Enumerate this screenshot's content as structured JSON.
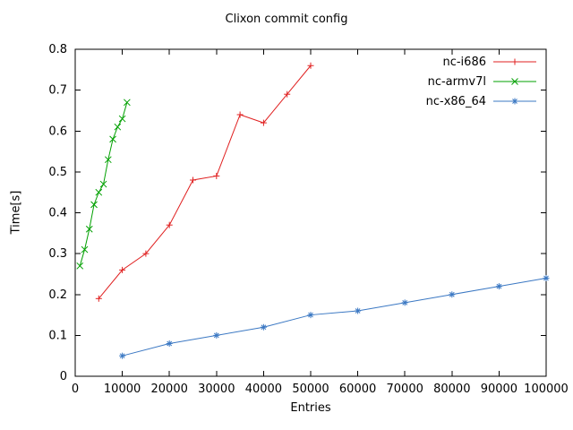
{
  "chart_data": {
    "type": "line",
    "title": "Clixon commit config",
    "xlabel": "Entries",
    "ylabel": "Time[s]",
    "xlim": [
      0,
      100000
    ],
    "ylim": [
      0,
      0.8
    ],
    "grid": false,
    "legend_position": "top-right-inside",
    "xtick_values": [
      0,
      10000,
      20000,
      30000,
      40000,
      50000,
      60000,
      70000,
      80000,
      90000,
      100000
    ],
    "xtick_labels": [
      "0",
      "10000",
      "20000",
      "30000",
      "40000",
      "50000",
      "60000",
      "70000",
      "80000",
      "90000",
      "100000"
    ],
    "ytick_values": [
      0,
      0.1,
      0.2,
      0.3,
      0.4,
      0.5,
      0.6,
      0.7,
      0.8
    ],
    "ytick_labels": [
      "0",
      "0.1",
      "0.2",
      "0.3",
      "0.4",
      "0.5",
      "0.6",
      "0.7",
      "0.8"
    ],
    "series": [
      {
        "name": "nc-i686",
        "color": "#e02020",
        "marker": "plus",
        "x": [
          5000,
          10000,
          15000,
          20000,
          25000,
          30000,
          35000,
          40000,
          45000,
          50000
        ],
        "y": [
          0.19,
          0.26,
          0.3,
          0.37,
          0.48,
          0.49,
          0.64,
          0.62,
          0.69,
          0.76
        ]
      },
      {
        "name": "nc-armv7l",
        "color": "#00a000",
        "marker": "cross",
        "x": [
          1000,
          2000,
          3000,
          4000,
          5000,
          6000,
          7000,
          8000,
          9000,
          10000,
          11000
        ],
        "y": [
          0.27,
          0.31,
          0.36,
          0.42,
          0.45,
          0.47,
          0.53,
          0.58,
          0.61,
          0.63,
          0.67
        ]
      },
      {
        "name": "nc-x86_64",
        "color": "#3b78c3",
        "marker": "star",
        "x": [
          10000,
          20000,
          30000,
          40000,
          50000,
          60000,
          70000,
          80000,
          90000,
          100000
        ],
        "y": [
          0.05,
          0.08,
          0.1,
          0.12,
          0.15,
          0.16,
          0.18,
          0.2,
          0.22,
          0.24
        ]
      }
    ]
  }
}
